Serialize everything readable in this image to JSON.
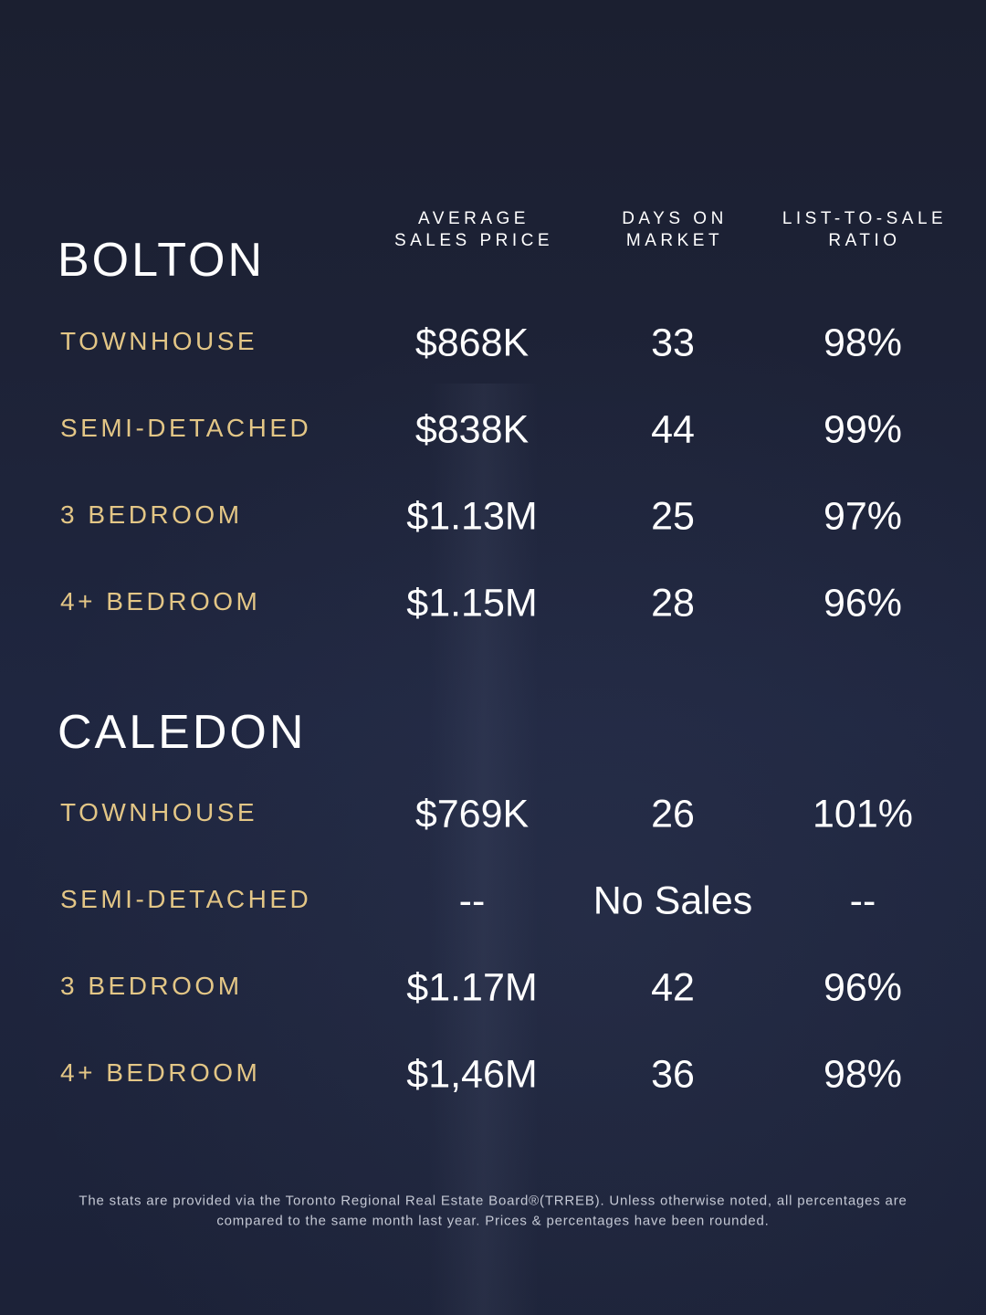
{
  "header": {
    "columns": [
      [
        "AVERAGE",
        "SALES PRICE"
      ],
      [
        "DAYS ON",
        "MARKET"
      ],
      [
        "LIST-TO-SALE",
        "RATIO"
      ]
    ]
  },
  "sections": [
    {
      "name": "BOLTON",
      "rows": [
        [
          "TOWNHOUSE",
          "$868K",
          "33",
          "98%"
        ],
        [
          "SEMI-DETACHED",
          "$838K",
          "44",
          "99%"
        ],
        [
          "3 BEDROOM",
          "$1.13M",
          "25",
          "97%"
        ],
        [
          "4+ BEDROOM",
          "$1.15M",
          "28",
          "96%"
        ]
      ]
    },
    {
      "name": "CALEDON",
      "rows": [
        [
          "TOWNHOUSE",
          "$769K",
          "26",
          "101%"
        ],
        [
          "SEMI-DETACHED",
          "--",
          "No Sales",
          "--"
        ],
        [
          "3 BEDROOM",
          "$1.17M",
          "42",
          "96%"
        ],
        [
          "4+ BEDROOM",
          "$1,46M",
          "36",
          "98%"
        ]
      ]
    }
  ],
  "footnote": [
    "The stats are provided via the Toronto Regional Real Estate Board®(TRREB). Unless otherwise noted, all percentages are",
    "compared to the same month last year. Prices & percentages have been rounded."
  ]
}
